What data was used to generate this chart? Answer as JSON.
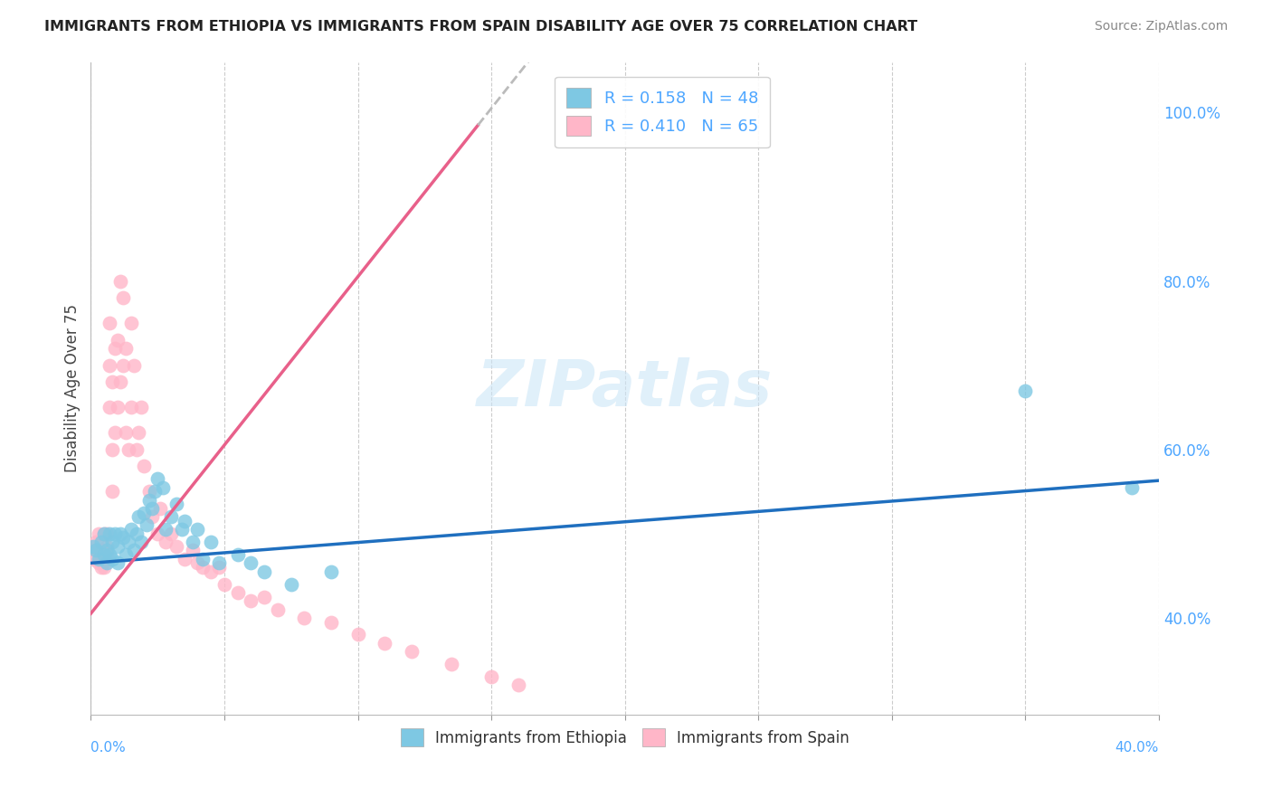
{
  "title": "IMMIGRANTS FROM ETHIOPIA VS IMMIGRANTS FROM SPAIN DISABILITY AGE OVER 75 CORRELATION CHART",
  "source": "Source: ZipAtlas.com",
  "ylabel": "Disability Age Over 75",
  "right_yticks": [
    "40.0%",
    "60.0%",
    "80.0%",
    "100.0%"
  ],
  "right_ytick_vals": [
    0.4,
    0.6,
    0.8,
    1.0
  ],
  "xlim": [
    0.0,
    0.4
  ],
  "ylim": [
    0.285,
    1.06
  ],
  "watermark_text": "ZIPatlas",
  "ethiopia_color": "#7ec8e3",
  "spain_color": "#ffb6c8",
  "ethiopia_R": 0.158,
  "ethiopia_N": 48,
  "spain_R": 0.41,
  "spain_N": 65,
  "ethiopia_line_color": "#1f6fbf",
  "spain_line_color": "#e8608a",
  "spain_line_intercept": 0.405,
  "spain_line_slope": 4.0,
  "ethiopia_line_intercept": 0.465,
  "ethiopia_line_slope": 0.245,
  "ethiopia_scatter_x": [
    0.001,
    0.002,
    0.003,
    0.004,
    0.005,
    0.005,
    0.006,
    0.006,
    0.007,
    0.007,
    0.008,
    0.008,
    0.009,
    0.01,
    0.01,
    0.011,
    0.012,
    0.013,
    0.014,
    0.015,
    0.016,
    0.017,
    0.018,
    0.019,
    0.02,
    0.021,
    0.022,
    0.023,
    0.024,
    0.025,
    0.027,
    0.028,
    0.03,
    0.032,
    0.034,
    0.035,
    0.038,
    0.04,
    0.042,
    0.045,
    0.048,
    0.055,
    0.06,
    0.065,
    0.075,
    0.09,
    0.35,
    0.39
  ],
  "ethiopia_scatter_y": [
    0.485,
    0.48,
    0.47,
    0.49,
    0.5,
    0.475,
    0.465,
    0.48,
    0.5,
    0.475,
    0.47,
    0.49,
    0.5,
    0.485,
    0.465,
    0.5,
    0.495,
    0.475,
    0.49,
    0.505,
    0.48,
    0.5,
    0.52,
    0.49,
    0.525,
    0.51,
    0.54,
    0.53,
    0.55,
    0.565,
    0.555,
    0.505,
    0.52,
    0.535,
    0.505,
    0.515,
    0.49,
    0.505,
    0.47,
    0.49,
    0.465,
    0.475,
    0.465,
    0.455,
    0.44,
    0.455,
    0.67,
    0.555
  ],
  "spain_scatter_x": [
    0.001,
    0.002,
    0.002,
    0.003,
    0.003,
    0.003,
    0.004,
    0.004,
    0.004,
    0.005,
    0.005,
    0.005,
    0.006,
    0.006,
    0.006,
    0.007,
    0.007,
    0.007,
    0.008,
    0.008,
    0.008,
    0.009,
    0.009,
    0.01,
    0.01,
    0.011,
    0.011,
    0.012,
    0.012,
    0.013,
    0.013,
    0.014,
    0.015,
    0.015,
    0.016,
    0.017,
    0.018,
    0.019,
    0.02,
    0.022,
    0.023,
    0.025,
    0.026,
    0.028,
    0.03,
    0.032,
    0.035,
    0.038,
    0.04,
    0.042,
    0.045,
    0.048,
    0.05,
    0.055,
    0.06,
    0.065,
    0.07,
    0.08,
    0.09,
    0.1,
    0.11,
    0.12,
    0.135,
    0.15,
    0.16
  ],
  "spain_scatter_y": [
    0.47,
    0.48,
    0.49,
    0.5,
    0.465,
    0.475,
    0.48,
    0.47,
    0.46,
    0.5,
    0.475,
    0.46,
    0.5,
    0.485,
    0.475,
    0.65,
    0.7,
    0.75,
    0.68,
    0.6,
    0.55,
    0.72,
    0.62,
    0.73,
    0.65,
    0.8,
    0.68,
    0.78,
    0.7,
    0.72,
    0.62,
    0.6,
    0.75,
    0.65,
    0.7,
    0.6,
    0.62,
    0.65,
    0.58,
    0.55,
    0.52,
    0.5,
    0.53,
    0.49,
    0.5,
    0.485,
    0.47,
    0.48,
    0.465,
    0.46,
    0.455,
    0.46,
    0.44,
    0.43,
    0.42,
    0.425,
    0.41,
    0.4,
    0.395,
    0.38,
    0.37,
    0.36,
    0.345,
    0.33,
    0.32
  ]
}
